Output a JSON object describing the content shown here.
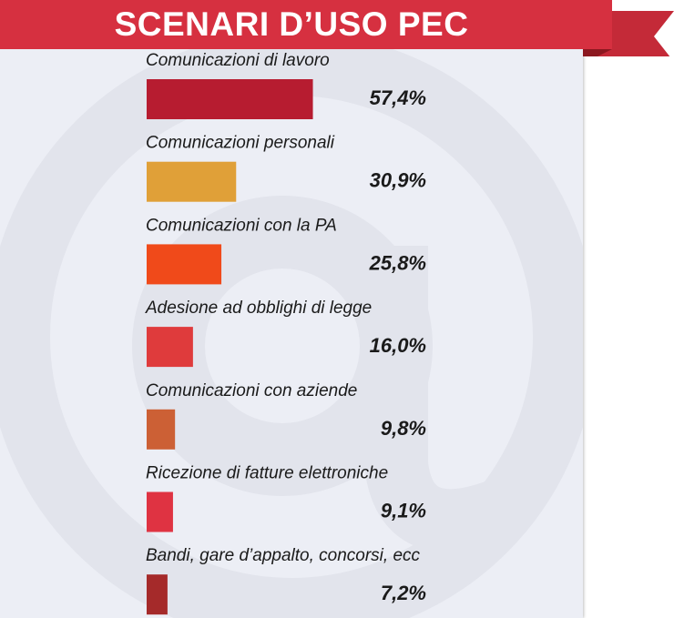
{
  "title": "SCENARI D’USO PEC",
  "colors": {
    "ribbon": "#d63040",
    "ribbon_dark": "#9c1c25",
    "panel": "#eceef5"
  },
  "chart_data": {
    "type": "bar",
    "orientation": "horizontal",
    "categories": [
      "Comunicazioni di lavoro",
      "Comunicazioni personali",
      "Comunicazioni con la PA",
      "Adesione ad obblighi di legge",
      "Comunicazioni con aziende",
      "Ricezione di fatture elettroniche",
      "Bandi, gare d’appalto, concorsi, ecc"
    ],
    "values": [
      57.4,
      30.9,
      25.8,
      16.0,
      9.8,
      9.1,
      7.2
    ],
    "value_labels": [
      "57,4%",
      "30,9%",
      "25,8%",
      "16,0%",
      "9,8%",
      "9,1%",
      "7,2%"
    ],
    "colors": [
      "#b71c30",
      "#e0a038",
      "#f04a1a",
      "#df3b3c",
      "#cc6035",
      "#df3342",
      "#a52a2a"
    ],
    "unit": "%",
    "xlim": [
      0,
      100
    ],
    "grid": false,
    "legend": "none"
  }
}
